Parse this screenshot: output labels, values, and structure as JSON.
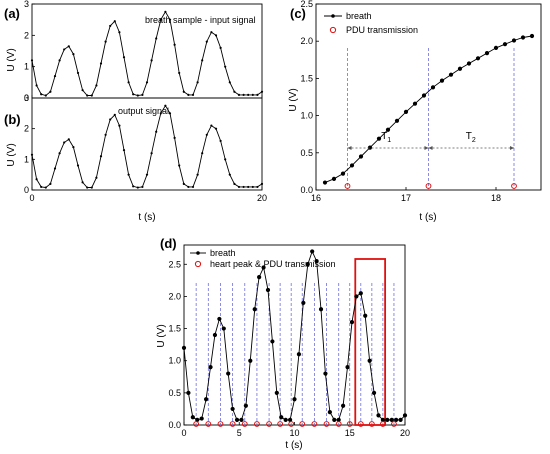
{
  "chart_data": [
    {
      "id": "a",
      "panel_label": "(a)",
      "type": "line",
      "legend": "breath sample - input signal",
      "ylabel": "U (V)",
      "xlabel": "",
      "xlim": [
        0,
        20
      ],
      "ylim": [
        0,
        3
      ],
      "yticks": [
        0,
        1,
        2,
        3
      ],
      "xticks": [],
      "x": [
        0,
        0.4,
        0.8,
        1.2,
        1.6,
        2.0,
        2.4,
        2.8,
        3.2,
        3.6,
        4.0,
        4.4,
        4.8,
        5.2,
        5.6,
        6.0,
        6.4,
        6.8,
        7.2,
        7.6,
        8.0,
        8.4,
        8.8,
        9.2,
        9.6,
        10.0,
        10.4,
        10.8,
        11.2,
        11.6,
        12.0,
        12.4,
        12.8,
        13.2,
        13.6,
        14.0,
        14.4,
        14.8,
        15.2,
        15.6,
        16.0,
        16.4,
        16.8,
        17.2,
        17.6,
        18.0,
        18.4,
        18.8,
        19.2,
        19.6,
        20.0
      ],
      "y": [
        1.2,
        0.4,
        0.12,
        0.08,
        0.2,
        0.7,
        1.2,
        1.55,
        1.65,
        1.4,
        0.8,
        0.25,
        0.08,
        0.08,
        0.4,
        1.1,
        1.8,
        2.3,
        2.45,
        2.1,
        1.3,
        0.5,
        0.12,
        0.08,
        0.1,
        0.5,
        1.2,
        1.9,
        2.5,
        2.75,
        2.5,
        1.7,
        0.8,
        0.2,
        0.1,
        0.1,
        0.5,
        1.2,
        1.8,
        2.1,
        2.0,
        1.6,
        1.0,
        0.5,
        0.2,
        0.1,
        0.1,
        0.1,
        0.1,
        0.1,
        0.2
      ]
    },
    {
      "id": "b",
      "panel_label": "(b)",
      "type": "line",
      "legend": "output signal",
      "ylabel": "U (V)",
      "xlabel": "t (s)",
      "xlim": [
        0,
        20
      ],
      "ylim": [
        0,
        3
      ],
      "yticks": [
        0,
        1,
        2,
        3
      ],
      "xticks": [
        0,
        20
      ],
      "x": [
        0,
        0.4,
        0.8,
        1.2,
        1.6,
        2.0,
        2.4,
        2.8,
        3.2,
        3.6,
        4.0,
        4.4,
        4.8,
        5.2,
        5.6,
        6.0,
        6.4,
        6.8,
        7.2,
        7.6,
        8.0,
        8.4,
        8.8,
        9.2,
        9.6,
        10.0,
        10.4,
        10.8,
        11.2,
        11.6,
        12.0,
        12.4,
        12.8,
        13.2,
        13.6,
        14.0,
        14.4,
        14.8,
        15.2,
        15.6,
        16.0,
        16.4,
        16.8,
        17.2,
        17.6,
        18.0,
        18.4,
        18.8,
        19.2,
        19.6,
        20.0
      ],
      "y": [
        1.15,
        0.35,
        0.1,
        0.08,
        0.2,
        0.7,
        1.2,
        1.55,
        1.65,
        1.4,
        0.8,
        0.25,
        0.08,
        0.08,
        0.4,
        1.1,
        1.8,
        2.3,
        2.45,
        2.1,
        1.3,
        0.5,
        0.12,
        0.08,
        0.1,
        0.5,
        1.2,
        1.9,
        2.5,
        2.75,
        2.5,
        1.7,
        0.8,
        0.2,
        0.1,
        0.1,
        0.5,
        1.2,
        1.8,
        2.1,
        2.0,
        1.6,
        1.0,
        0.5,
        0.2,
        0.1,
        0.1,
        0.1,
        0.1,
        0.1,
        0.2
      ]
    },
    {
      "id": "c",
      "panel_label": "(c)",
      "type": "line",
      "legend": [
        "breath",
        "PDU transmission"
      ],
      "ylabel": "U (V)",
      "xlabel": "t (s)",
      "xlim": [
        16,
        18.5
      ],
      "ylim": [
        0,
        2.5
      ],
      "xticks": [
        16,
        17,
        18
      ],
      "yticks": [
        0.0,
        0.5,
        1.0,
        1.5,
        2.0,
        2.5
      ],
      "x": [
        16.1,
        16.2,
        16.3,
        16.4,
        16.5,
        16.6,
        16.7,
        16.8,
        16.9,
        17.0,
        17.1,
        17.2,
        17.3,
        17.4,
        17.5,
        17.6,
        17.7,
        17.8,
        17.9,
        18.0,
        18.1,
        18.2,
        18.3,
        18.4
      ],
      "y": [
        0.1,
        0.15,
        0.22,
        0.33,
        0.45,
        0.57,
        0.69,
        0.81,
        0.93,
        1.05,
        1.16,
        1.27,
        1.38,
        1.47,
        1.55,
        1.63,
        1.7,
        1.77,
        1.84,
        1.91,
        1.96,
        2.01,
        2.05,
        2.07
      ],
      "events": [
        16.35,
        17.25,
        18.2
      ],
      "annotations": [
        {
          "text": "T",
          "sub": "1",
          "x": 16.78
        },
        {
          "text": "T",
          "sub": "2",
          "x": 17.72
        }
      ]
    },
    {
      "id": "d",
      "panel_label": "(d)",
      "type": "line",
      "legend": [
        "breath",
        "heart peak & PDU transmission"
      ],
      "ylabel": "U (V)",
      "xlabel": "t (s)",
      "xlim": [
        0,
        20
      ],
      "ylim": [
        0,
        2.8
      ],
      "xticks": [
        0,
        5,
        10,
        15,
        20
      ],
      "yticks": [
        0.0,
        0.5,
        1.0,
        1.5,
        2.0,
        2.5
      ],
      "x": [
        0,
        0.4,
        0.8,
        1.2,
        1.6,
        2.0,
        2.4,
        2.8,
        3.2,
        3.6,
        4.0,
        4.4,
        4.8,
        5.2,
        5.6,
        6.0,
        6.4,
        6.8,
        7.2,
        7.6,
        8.0,
        8.4,
        8.8,
        9.2,
        9.6,
        10.0,
        10.4,
        10.8,
        11.2,
        11.6,
        12.0,
        12.4,
        12.8,
        13.2,
        13.6,
        14.0,
        14.4,
        14.8,
        15.2,
        15.6,
        16.0,
        16.4,
        16.8,
        17.2,
        17.6,
        18.0,
        18.4,
        18.8,
        19.2,
        19.6,
        20.0
      ],
      "y": [
        1.2,
        0.5,
        0.12,
        0.08,
        0.1,
        0.4,
        0.9,
        1.4,
        1.65,
        1.5,
        0.8,
        0.25,
        0.08,
        0.08,
        0.3,
        1.0,
        1.8,
        2.3,
        2.45,
        2.1,
        1.3,
        0.5,
        0.12,
        0.08,
        0.08,
        0.4,
        1.1,
        1.9,
        2.5,
        2.7,
        2.55,
        1.8,
        0.8,
        0.2,
        0.08,
        0.08,
        0.3,
        0.9,
        1.6,
        2.0,
        2.05,
        1.7,
        1.0,
        0.5,
        0.15,
        0.08,
        0.08,
        0.08,
        0.08,
        0.08,
        0.15
      ],
      "events": [
        1.1,
        2.2,
        3.3,
        4.4,
        5.5,
        6.6,
        7.7,
        8.7,
        9.7,
        10.7,
        11.8,
        12.9,
        14.0,
        15.0,
        16.0,
        17.0,
        18.0,
        19.0
      ],
      "highlight_x": [
        15.5,
        18.2
      ]
    }
  ]
}
